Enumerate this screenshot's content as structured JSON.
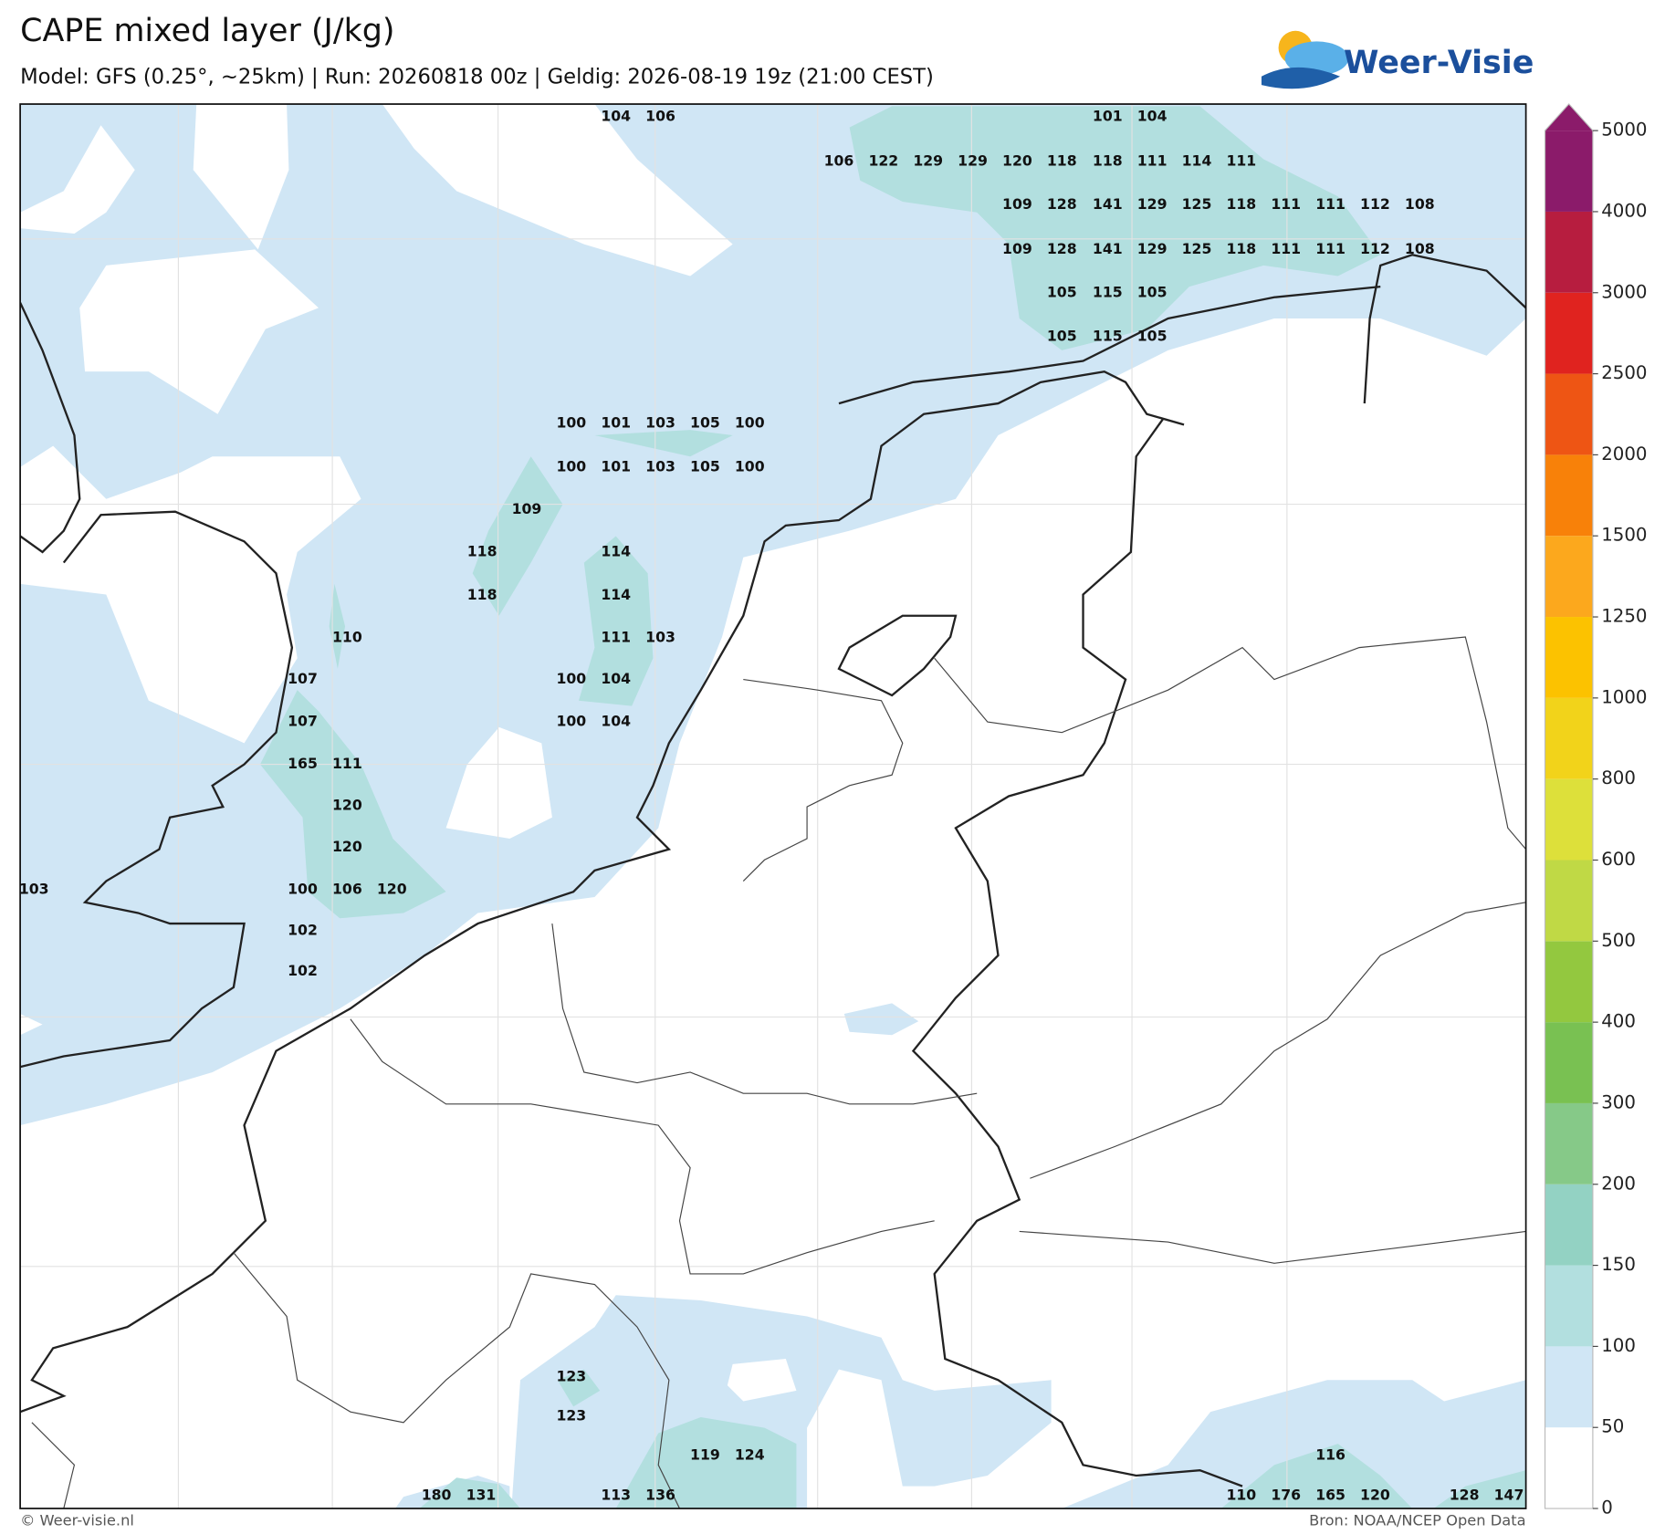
{
  "header": {
    "title": "CAPE mixed layer (J/kg)",
    "subtitle": "Model: GFS (0.25°, ~25km)  |  Run: 20260818 00z  |  Geldig: 2026-08-19 19z (21:00 CEST)",
    "logo": "Weer-Visie"
  },
  "map": {
    "grid_labels": [
      104,
      106,
      101,
      104,
      106,
      122,
      129,
      129,
      120,
      118,
      118,
      111,
      114,
      111,
      109,
      128,
      141,
      129,
      125,
      118,
      111,
      111,
      112,
      108,
      109,
      128,
      141,
      129,
      125,
      118,
      111,
      111,
      112,
      108,
      105,
      115,
      105,
      105,
      115,
      105,
      100,
      101,
      103,
      105,
      100,
      100,
      101,
      103,
      105,
      100,
      109,
      118,
      114,
      118,
      114,
      110,
      111,
      103,
      107,
      100,
      104,
      107,
      100,
      104,
      165,
      111,
      120,
      120,
      103,
      100,
      106,
      120,
      102,
      102,
      123,
      123,
      119,
      124,
      116,
      180,
      131,
      113,
      136,
      110,
      176,
      165,
      120,
      128,
      147
    ]
  },
  "colorbar": {
    "ticks": [
      0,
      50,
      100,
      150,
      200,
      300,
      400,
      500,
      600,
      800,
      1000,
      1250,
      1500,
      2000,
      2500,
      3000,
      4000,
      5000
    ],
    "colors": [
      "#ffffff",
      "#d0e6f5",
      "#b2dfdf",
      "#93d2c3",
      "#86c988",
      "#79c152",
      "#93c83f",
      "#c0d945",
      "#dde03a",
      "#f2d31a",
      "#fcc200",
      "#fca81d",
      "#f88109",
      "#ee5514",
      "#e0231f",
      "#b71d3f",
      "#8b1b6a"
    ]
  },
  "footer": {
    "left": "© Weer-visie.nl",
    "right": "Bron: NOAA/NCEP Open Data"
  }
}
